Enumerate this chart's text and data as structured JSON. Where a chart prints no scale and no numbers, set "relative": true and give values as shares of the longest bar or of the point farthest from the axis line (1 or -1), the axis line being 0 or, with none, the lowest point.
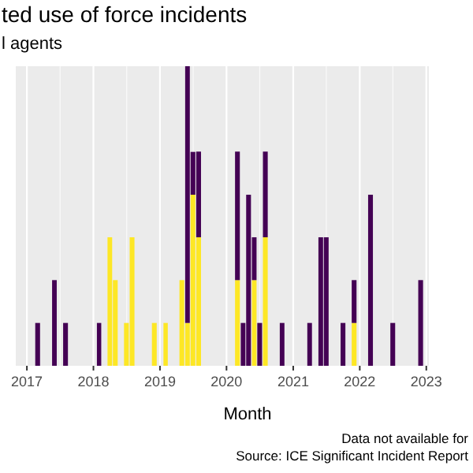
{
  "chart_data": {
    "type": "bar",
    "title": "ted use of force incidents",
    "subtitle": "l agents",
    "xlabel": "Month",
    "relative": true,
    "stacked": true,
    "grid": "x",
    "annotations": [
      "Data not available for",
      "Source: ICE Significant Incident Report"
    ],
    "x": [
      "2017-03",
      "2017-06",
      "2017-08",
      "2018-02",
      "2018-04",
      "2018-05",
      "2018-07",
      "2018-08",
      "2018-12",
      "2019-02",
      "2019-05",
      "2019-06",
      "2019-07",
      "2019-08",
      "2020-03",
      "2020-04",
      "2020-05",
      "2020-06",
      "2020-07",
      "2020-08",
      "2020-11",
      "2021-04",
      "2021-06",
      "2021-07",
      "2021-10",
      "2021-12",
      "2022-03",
      "2022-07",
      "2022-12"
    ],
    "xlim": [
      "2016-11-01",
      "2023-01-15"
    ],
    "xticks": [
      "2017",
      "2018",
      "2019",
      "2020",
      "2021",
      "2022",
      "2023"
    ],
    "series": [
      {
        "color": "#fde725",
        "values": [
          null,
          null,
          null,
          null,
          0.429,
          0.286,
          0.143,
          0.429,
          0.143,
          0.143,
          0.286,
          0.143,
          0.571,
          0.429,
          0.286,
          null,
          null,
          0.286,
          null,
          0.429,
          null,
          null,
          null,
          null,
          null,
          0.143,
          null,
          null,
          null
        ]
      },
      {
        "color": "#440154",
        "values": [
          0.143,
          0.286,
          0.143,
          0.143,
          null,
          null,
          null,
          null,
          null,
          null,
          null,
          0.857,
          0.143,
          0.286,
          0.429,
          0.143,
          0.571,
          0.143,
          0.143,
          0.286,
          0.143,
          0.143,
          0.429,
          0.429,
          0.143,
          0.143,
          0.571,
          0.143,
          0.286
        ]
      }
    ]
  }
}
